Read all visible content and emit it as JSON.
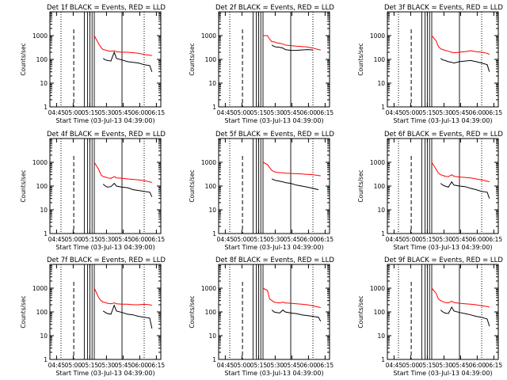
{
  "figure": {
    "panel_titles": [
      "Det 1f BLACK = Events, RED = LLD",
      "Det 2f BLACK = Events, RED = LLD",
      "Det 3f BLACK = Events, RED = LLD",
      "Det 4f BLACK = Events, RED = LLD",
      "Det 5f BLACK = Events, RED = LLD",
      "Det 6f BLACK = Events, RED = LLD",
      "Det 7f BLACK = Events, RED = LLD",
      "Det 8f BLACK = Events, RED = LLD",
      "Det 9f BLACK = Events, RED = LLD"
    ],
    "xlabel": "Start Time (03-Jul-13 04:39:00)",
    "ylabel": "Counts/sec",
    "x_tick_labels": [
      "04:45",
      "05:00",
      "05:15",
      "05:30",
      "05:45",
      "06:00",
      "06:15"
    ],
    "y_tick_labels": [
      "1",
      "10",
      "100",
      "1000"
    ],
    "colors": {
      "events": "#000000",
      "lld": "#ff0000"
    }
  },
  "chart_data": [
    {
      "type": "line",
      "title": "Det 1f BLACK = Events, RED = LLD",
      "x_minutes": [
        40,
        44,
        46,
        48,
        50,
        52,
        55,
        58,
        60,
        65,
        70,
        75,
        80,
        85,
        90,
        92
      ],
      "series": [
        {
          "name": "Events",
          "values": [
            null,
            null,
            null,
            110,
            95,
            90,
            85,
            200,
            110,
            95,
            80,
            75,
            70,
            60,
            55,
            30
          ]
        },
        {
          "name": "LLD",
          "values": [
            1000,
            450,
            320,
            260,
            250,
            230,
            220,
            230,
            210,
            200,
            200,
            190,
            180,
            160,
            150,
            145
          ]
        }
      ]
    },
    {
      "type": "line",
      "title": "Det 2f BLACK = Events, RED = LLD",
      "x_minutes": [
        40,
        44,
        46,
        48,
        50,
        52,
        55,
        58,
        60,
        65,
        70,
        75,
        80,
        85,
        90,
        92
      ],
      "series": [
        {
          "name": "Events",
          "values": [
            null,
            null,
            null,
            400,
            350,
            330,
            320,
            300,
            260,
            240,
            240,
            250,
            260,
            250,
            null,
            null
          ]
        },
        {
          "name": "LLD",
          "values": [
            1000,
            1000,
            700,
            560,
            550,
            500,
            480,
            440,
            400,
            380,
            360,
            350,
            330,
            300,
            260,
            250
          ]
        }
      ]
    },
    {
      "type": "line",
      "title": "Det 3f BLACK = Events, RED = LLD",
      "x_minutes": [
        40,
        44,
        46,
        48,
        50,
        52,
        55,
        58,
        60,
        65,
        70,
        75,
        80,
        85,
        90,
        92
      ],
      "series": [
        {
          "name": "Events",
          "values": [
            null,
            null,
            null,
            110,
            95,
            90,
            80,
            75,
            70,
            80,
            85,
            90,
            80,
            70,
            60,
            30
          ]
        },
        {
          "name": "LLD",
          "values": [
            1000,
            600,
            350,
            280,
            260,
            240,
            220,
            200,
            190,
            200,
            210,
            230,
            210,
            200,
            180,
            160
          ]
        }
      ]
    },
    {
      "type": "line",
      "title": "Det 4f BLACK = Events, RED = LLD",
      "x_minutes": [
        40,
        44,
        46,
        48,
        50,
        52,
        55,
        58,
        60,
        65,
        70,
        75,
        80,
        85,
        90,
        92
      ],
      "series": [
        {
          "name": "Events",
          "values": [
            null,
            null,
            null,
            120,
            100,
            90,
            95,
            130,
            100,
            90,
            85,
            70,
            65,
            60,
            55,
            35
          ]
        },
        {
          "name": "LLD",
          "values": [
            1000,
            500,
            300,
            250,
            240,
            220,
            210,
            250,
            220,
            210,
            200,
            190,
            180,
            170,
            150,
            140
          ]
        }
      ]
    },
    {
      "type": "line",
      "title": "Det 5f BLACK = Events, RED = LLD",
      "x_minutes": [
        40,
        44,
        46,
        48,
        50,
        52,
        55,
        58,
        60,
        65,
        70,
        75,
        80,
        85,
        90,
        92
      ],
      "series": [
        {
          "name": "Events",
          "values": [
            null,
            null,
            null,
            200,
            180,
            170,
            160,
            150,
            140,
            130,
            110,
            100,
            90,
            80,
            70,
            null
          ]
        },
        {
          "name": "LLD",
          "values": [
            1000,
            800,
            600,
            450,
            400,
            380,
            370,
            360,
            350,
            340,
            330,
            320,
            310,
            300,
            280,
            270
          ]
        }
      ]
    },
    {
      "type": "line",
      "title": "Det 6f BLACK = Events, RED = LLD",
      "x_minutes": [
        40,
        44,
        46,
        48,
        50,
        52,
        55,
        58,
        60,
        65,
        70,
        75,
        80,
        85,
        90,
        92
      ],
      "series": [
        {
          "name": "Events",
          "values": [
            null,
            null,
            null,
            130,
            110,
            100,
            90,
            150,
            110,
            100,
            95,
            80,
            70,
            60,
            55,
            30
          ]
        },
        {
          "name": "LLD",
          "values": [
            1000,
            500,
            350,
            300,
            280,
            260,
            250,
            300,
            260,
            240,
            230,
            220,
            200,
            180,
            160,
            150
          ]
        }
      ]
    },
    {
      "type": "line",
      "title": "Det 7f BLACK = Events, RED = LLD",
      "x_minutes": [
        40,
        44,
        46,
        48,
        50,
        52,
        55,
        58,
        60,
        65,
        70,
        75,
        80,
        85,
        90,
        92
      ],
      "series": [
        {
          "name": "Events",
          "values": [
            null,
            null,
            null,
            110,
            95,
            85,
            80,
            190,
            110,
            95,
            80,
            75,
            65,
            60,
            55,
            20
          ]
        },
        {
          "name": "LLD",
          "values": [
            1000,
            400,
            300,
            260,
            250,
            230,
            220,
            240,
            220,
            210,
            210,
            200,
            200,
            210,
            200,
            190
          ]
        }
      ]
    },
    {
      "type": "line",
      "title": "Det 8f BLACK = Events, RED = LLD",
      "x_minutes": [
        40,
        44,
        46,
        48,
        50,
        52,
        55,
        58,
        60,
        65,
        70,
        75,
        80,
        85,
        90,
        92
      ],
      "series": [
        {
          "name": "Events",
          "values": [
            null,
            null,
            null,
            120,
            100,
            95,
            90,
            120,
            100,
            90,
            85,
            75,
            70,
            65,
            60,
            40
          ]
        },
        {
          "name": "LLD",
          "values": [
            1000,
            800,
            350,
            300,
            260,
            250,
            240,
            260,
            240,
            230,
            220,
            210,
            200,
            180,
            160,
            150
          ]
        }
      ]
    },
    {
      "type": "line",
      "title": "Det 9f BLACK = Events, RED = LLD",
      "x_minutes": [
        40,
        44,
        46,
        48,
        50,
        52,
        55,
        58,
        60,
        65,
        70,
        75,
        80,
        85,
        90,
        92
      ],
      "series": [
        {
          "name": "Events",
          "values": [
            null,
            null,
            null,
            120,
            100,
            90,
            85,
            160,
            110,
            95,
            85,
            75,
            65,
            60,
            50,
            25
          ]
        },
        {
          "name": "LLD",
          "values": [
            1000,
            600,
            350,
            300,
            270,
            250,
            240,
            280,
            250,
            230,
            220,
            210,
            200,
            180,
            170,
            160
          ]
        }
      ]
    }
  ]
}
